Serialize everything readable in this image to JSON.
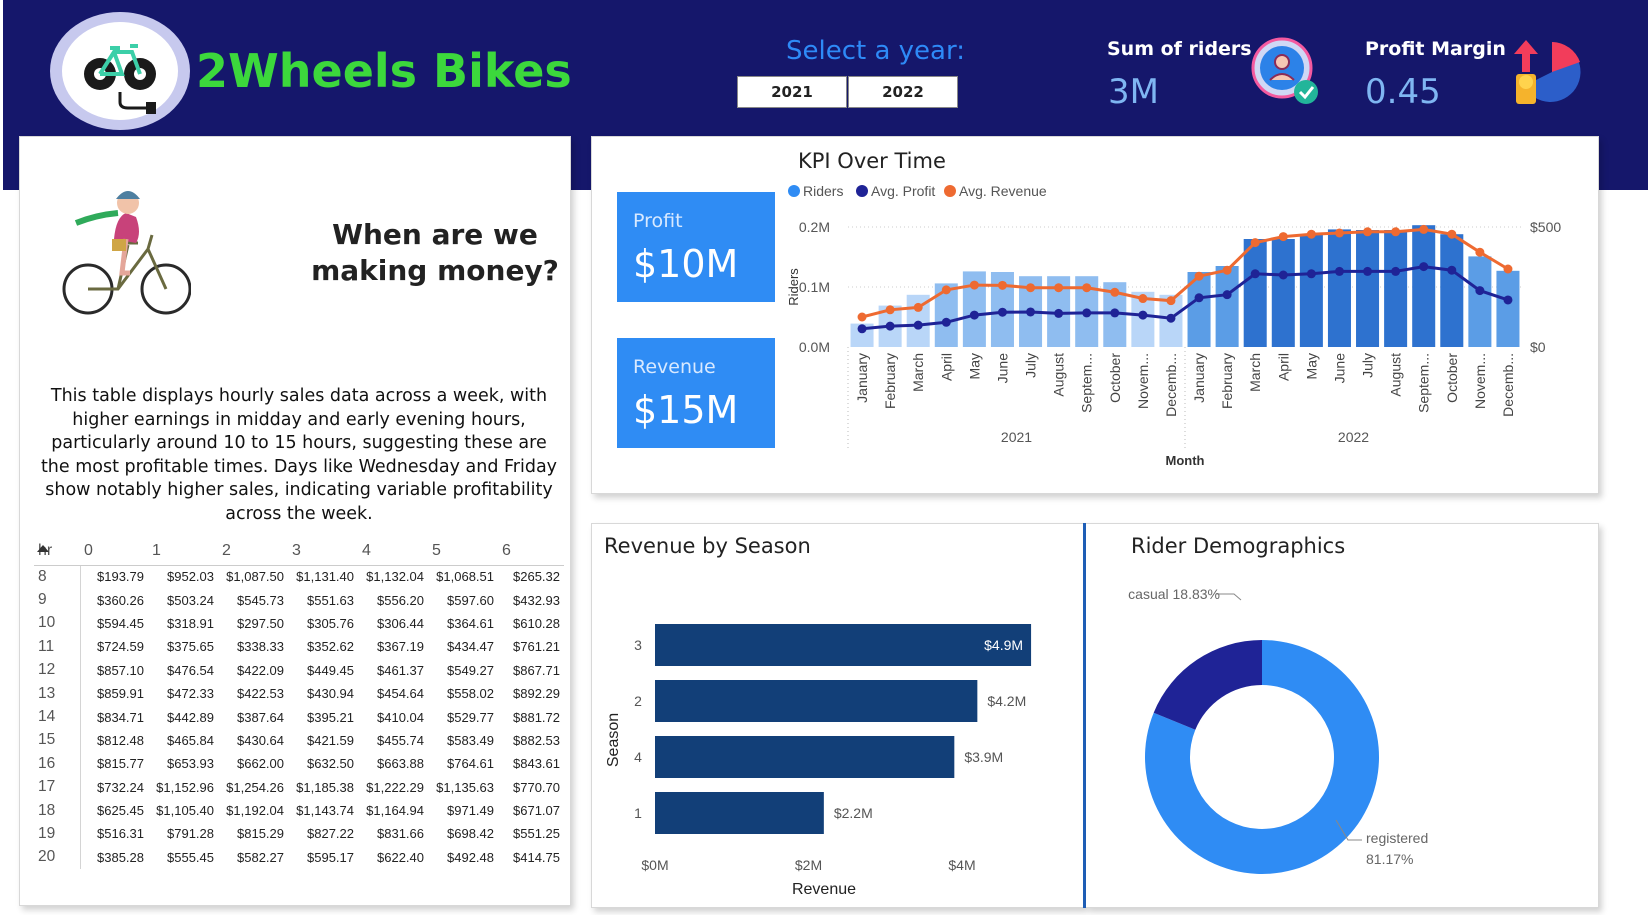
{
  "header": {
    "brand": "2Wheels Bikes",
    "select_label": "Select a year:",
    "years": [
      "2021",
      "2022"
    ],
    "kpis": [
      {
        "title": "Sum of riders",
        "value": "3M"
      },
      {
        "title": "Profit Margin",
        "value": "0.45"
      }
    ]
  },
  "left_panel": {
    "title_line1": "When are we",
    "title_line2": "making money?",
    "description": "This table displays hourly sales data across a week, with higher earnings in midday and early evening hours, particularly around 10 to 15 hours, suggesting these are the most profitable times. Days like Wednesday and Friday show notably higher sales, indicating variable profitability across the week.",
    "table": {
      "headers": [
        "hr",
        "0",
        "1",
        "2",
        "3",
        "4",
        "5",
        "6"
      ],
      "rows": [
        [
          "8",
          "$193.79",
          "$952.03",
          "$1,087.50",
          "$1,131.40",
          "$1,132.04",
          "$1,068.51",
          "$265.32"
        ],
        [
          "9",
          "$360.26",
          "$503.24",
          "$545.73",
          "$551.63",
          "$556.20",
          "$597.60",
          "$432.93"
        ],
        [
          "10",
          "$594.45",
          "$318.91",
          "$297.50",
          "$305.76",
          "$306.44",
          "$364.61",
          "$610.28"
        ],
        [
          "11",
          "$724.59",
          "$375.65",
          "$338.33",
          "$352.62",
          "$367.19",
          "$434.47",
          "$761.21"
        ],
        [
          "12",
          "$857.10",
          "$476.54",
          "$422.09",
          "$449.45",
          "$461.37",
          "$549.27",
          "$867.71"
        ],
        [
          "13",
          "$859.91",
          "$472.33",
          "$422.53",
          "$430.94",
          "$454.64",
          "$558.02",
          "$892.29"
        ],
        [
          "14",
          "$834.71",
          "$442.89",
          "$387.64",
          "$395.21",
          "$410.04",
          "$529.77",
          "$881.72"
        ],
        [
          "15",
          "$812.48",
          "$465.84",
          "$430.64",
          "$421.59",
          "$455.74",
          "$583.49",
          "$882.53"
        ],
        [
          "16",
          "$815.77",
          "$653.93",
          "$662.00",
          "$632.50",
          "$663.88",
          "$764.61",
          "$843.61"
        ],
        [
          "17",
          "$732.24",
          "$1,152.96",
          "$1,254.26",
          "$1,185.38",
          "$1,222.29",
          "$1,135.63",
          "$770.70"
        ],
        [
          "18",
          "$625.45",
          "$1,105.40",
          "$1,192.04",
          "$1,143.74",
          "$1,164.94",
          "$971.49",
          "$671.07"
        ],
        [
          "19",
          "$516.31",
          "$791.28",
          "$815.29",
          "$827.22",
          "$831.66",
          "$698.42",
          "$551.25"
        ],
        [
          "20",
          "$385.28",
          "$555.45",
          "$582.27",
          "$595.17",
          "$622.40",
          "$492.48",
          "$414.75"
        ]
      ]
    }
  },
  "kpi_cards": [
    {
      "label": "Profit",
      "value": "$10M"
    },
    {
      "label": "Revenue",
      "value": "$15M"
    }
  ],
  "colors": {
    "navy": "#15176b",
    "brand_green": "#3cd83c",
    "blue": "#2f8cf4",
    "dark_navy_line": "#1f2396",
    "orange": "#ee6a31",
    "season_bar": "#123f78"
  },
  "icons": [
    "bike-logo-icon",
    "user-check-icon",
    "profit-pie-icon",
    "cyclist-illustration"
  ],
  "chart_data": [
    {
      "type": "bar",
      "title": "KPI Over Time",
      "xlabel": "Month",
      "ylabel": "Riders",
      "legend": [
        "Riders",
        "Avg. Profit",
        "Avg. Revenue"
      ],
      "legend_position": "top-left",
      "y_ticks": [
        "0.0M",
        "0.1M",
        "0.2M"
      ],
      "y2_ticks": [
        "$0",
        "$500"
      ],
      "year_labels": [
        "2021",
        "2022"
      ],
      "categories": [
        "January",
        "February",
        "March",
        "April",
        "May",
        "June",
        "July",
        "August",
        "Septem...",
        "October",
        "Novem...",
        "Decemb...",
        "January",
        "February",
        "March",
        "April",
        "May",
        "June",
        "July",
        "August",
        "Septem...",
        "October",
        "Novem...",
        "Decemb..."
      ],
      "ylim": [
        0,
        0.2
      ],
      "y2lim": [
        0,
        500
      ],
      "series": [
        {
          "name": "Riders",
          "kind": "bar",
          "values": [
            0.039,
            0.069,
            0.087,
            0.106,
            0.126,
            0.125,
            0.118,
            0.118,
            0.118,
            0.108,
            0.092,
            0.087,
            0.125,
            0.135,
            0.18,
            0.18,
            0.187,
            0.196,
            0.195,
            0.195,
            0.203,
            0.188,
            0.151,
            0.127
          ]
        },
        {
          "name": "Avg. Profit",
          "kind": "line",
          "values": [
            76,
            87,
            91,
            103,
            133,
            145,
            146,
            140,
            142,
            142,
            133,
            120,
            205,
            218,
            305,
            300,
            305,
            315,
            315,
            315,
            335,
            320,
            235,
            196
          ]
        },
        {
          "name": "Avg. Revenue",
          "kind": "line",
          "values": [
            125,
            155,
            165,
            238,
            258,
            257,
            247,
            247,
            247,
            228,
            202,
            193,
            295,
            320,
            435,
            460,
            470,
            475,
            480,
            480,
            490,
            470,
            395,
            325
          ]
        }
      ]
    },
    {
      "type": "bar",
      "title": "Revenue by Season",
      "orientation": "horizontal",
      "xlabel": "Revenue",
      "ylabel": "Season",
      "categories": [
        "3",
        "2",
        "4",
        "1"
      ],
      "values": [
        4.9,
        4.2,
        3.9,
        2.2
      ],
      "data_labels": [
        "$4.9M",
        "$4.2M",
        "$3.9M",
        "$2.2M"
      ],
      "x_ticks": [
        "$0M",
        "$2M",
        "$4M"
      ],
      "xlim": [
        0,
        5.3
      ]
    },
    {
      "type": "pie",
      "title": "Rider Demographics",
      "donut": true,
      "slices": [
        {
          "name": "registered",
          "value": 81.17,
          "label_text": "81.17%"
        },
        {
          "name": "casual",
          "value": 18.83,
          "label_text": "casual 18.83%"
        }
      ]
    }
  ]
}
